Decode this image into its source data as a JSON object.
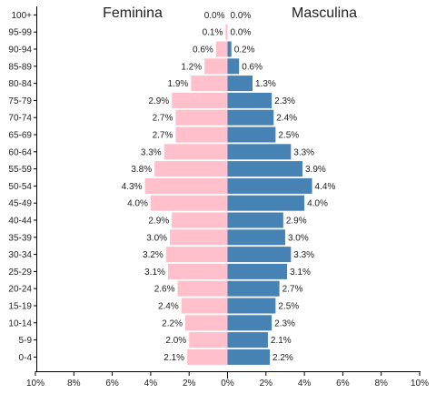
{
  "chart_data": {
    "type": "bar",
    "orientation": "horizontal",
    "titles": {
      "left": "Feminina",
      "right": "Masculina"
    },
    "categories": [
      "100+",
      "95-99",
      "90-94",
      "85-89",
      "80-84",
      "75-79",
      "70-74",
      "65-69",
      "60-64",
      "55-59",
      "50-54",
      "45-49",
      "40-44",
      "35-39",
      "30-34",
      "25-29",
      "20-24",
      "15-19",
      "10-14",
      "5-9",
      "0-4"
    ],
    "series": [
      {
        "name": "Feminina",
        "values": [
          0.0,
          0.1,
          0.6,
          1.2,
          1.9,
          2.9,
          2.7,
          2.7,
          3.3,
          3.8,
          4.3,
          4.0,
          2.9,
          3.0,
          3.2,
          3.1,
          2.6,
          2.4,
          2.2,
          2.0,
          2.1
        ]
      },
      {
        "name": "Masculina",
        "values": [
          0.0,
          0.0,
          0.2,
          0.6,
          1.3,
          2.3,
          2.4,
          2.5,
          3.3,
          3.9,
          4.4,
          4.0,
          2.9,
          3.0,
          3.3,
          3.1,
          2.7,
          2.5,
          2.3,
          2.1,
          2.2
        ]
      }
    ],
    "value_labels": {
      "Feminina": [
        "0.0%",
        "0.1%",
        "0.6%",
        "1.2%",
        "1.9%",
        "2.9%",
        "2.7%",
        "2.7%",
        "3.3%",
        "3.8%",
        "4.3%",
        "4.0%",
        "2.9%",
        "3.0%",
        "3.2%",
        "3.1%",
        "2.6%",
        "2.4%",
        "2.2%",
        "2.0%",
        "2.1%"
      ],
      "Masculina": [
        "0.0%",
        "0.0%",
        "0.2%",
        "0.6%",
        "1.3%",
        "2.3%",
        "2.4%",
        "2.5%",
        "3.3%",
        "3.9%",
        "4.4%",
        "4.0%",
        "2.9%",
        "3.0%",
        "3.3%",
        "3.1%",
        "2.7%",
        "2.5%",
        "2.3%",
        "2.1%",
        "2.2%"
      ]
    },
    "x_ticks": {
      "left": [
        "10%",
        "8%",
        "6%",
        "4%",
        "2%",
        "0%"
      ],
      "right": [
        "0%",
        "2%",
        "4%",
        "6%",
        "8%",
        "10%"
      ]
    },
    "xlim": [
      0,
      10
    ],
    "grid": false,
    "colors": {
      "Feminina": "#ffc0cb",
      "Masculina": "#4682b4"
    }
  }
}
